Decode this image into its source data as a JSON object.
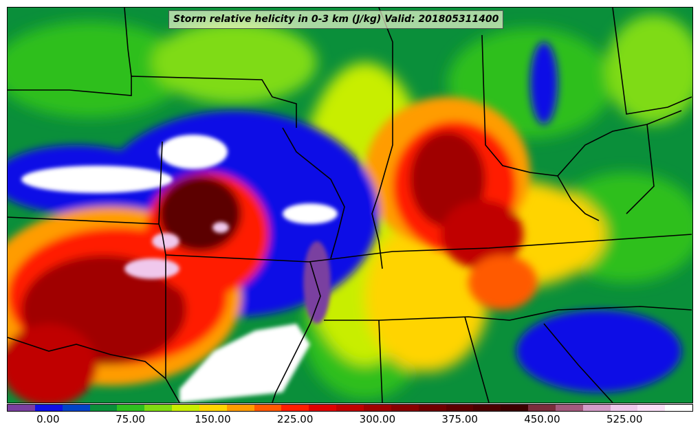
{
  "title": "Storm relative helicity in 0-3 km (J/kg) Valid: 201805311400",
  "colorbar": {
    "colors": [
      "#7a3fa0",
      "#1010e6",
      "#0044c8",
      "#0a8f3a",
      "#2fbf1f",
      "#7fdb12",
      "#c8ee00",
      "#ffd400",
      "#ff9c00",
      "#ff5a00",
      "#ff1e00",
      "#e00000",
      "#c00000",
      "#a00000",
      "#880000",
      "#700000",
      "#5c0000",
      "#4a0000",
      "#3c0000",
      "#7a2d3c",
      "#a45a7e",
      "#d49cc8",
      "#f0c8ec",
      "#fbe0f8",
      "#ffffff"
    ],
    "tick_labels": [
      "0.00",
      "75.00",
      "150.00",
      "225.00",
      "300.00",
      "375.00",
      "450.00",
      "525.00"
    ],
    "min": -37.5,
    "max": 587.5
  }
}
